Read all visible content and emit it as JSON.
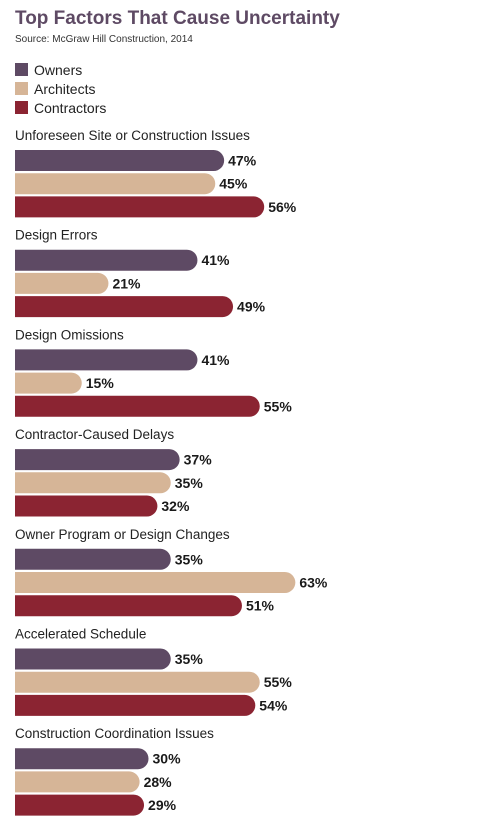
{
  "chart_data": {
    "type": "bar",
    "orientation": "horizontal",
    "title": "Top Factors That Cause Uncertainty",
    "subtitle": "Source: McGraw Hill Construction, 2014",
    "value_suffix": "%",
    "legend_position": "top-left",
    "grid": false,
    "xlim": [
      0,
      100
    ],
    "categories": [
      "Unforeseen Site or Construction Issues",
      "Design Errors",
      "Design Omissions",
      "Contractor-Caused Delays",
      "Owner Program or Design Changes",
      "Accelerated Schedule",
      "Construction Coordination Issues"
    ],
    "series": [
      {
        "name": "Owners",
        "color": "#5e4a64",
        "values": [
          47,
          41,
          41,
          37,
          35,
          35,
          30
        ]
      },
      {
        "name": "Architects",
        "color": "#d6b597",
        "values": [
          45,
          21,
          15,
          35,
          63,
          55,
          28
        ]
      },
      {
        "name": "Contractors",
        "color": "#8b2432",
        "values": [
          56,
          49,
          55,
          32,
          51,
          54,
          29
        ]
      }
    ]
  }
}
